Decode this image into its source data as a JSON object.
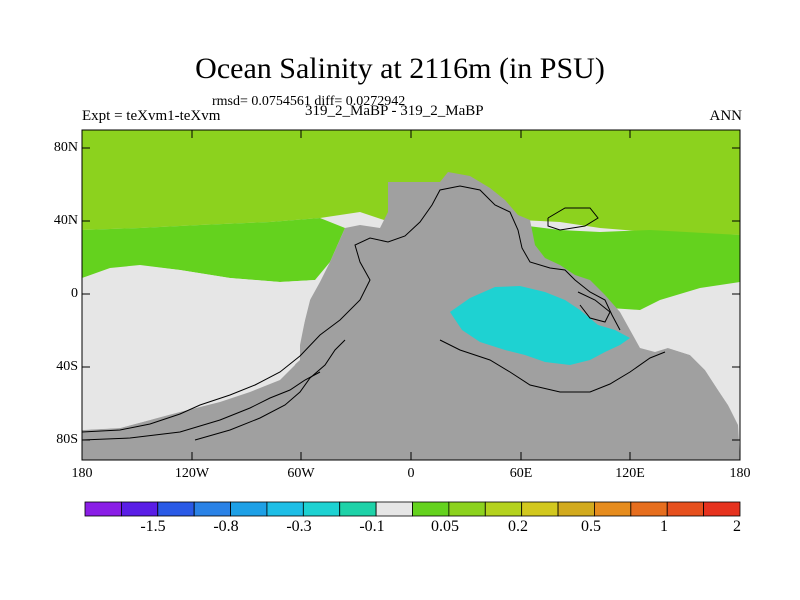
{
  "title": "Ocean Salinity at 2116m (in PSU)",
  "stats_line": "rmsd= 0.0754561 diff= 0.0272942",
  "experiment_label": "Expt = teXvm1-teXvm",
  "case_label": "319_2_MaBP - 319_2_MaBP",
  "season_label": "ANN",
  "y_ticks": [
    "80N",
    "40N",
    "0",
    "40S",
    "80S"
  ],
  "x_ticks": [
    "180",
    "120W",
    "60W",
    "0",
    "60E",
    "120E",
    "180"
  ],
  "colorbar": {
    "colors": [
      "#8a1ee6",
      "#5a1ee6",
      "#2a5ae6",
      "#2a82e6",
      "#1ea0e6",
      "#1ebee6",
      "#1ed2d2",
      "#1ed2a8",
      "#e6e6e6",
      "#64d21e",
      "#8cd21e",
      "#b4d21e",
      "#d2c81e",
      "#d2aa1e",
      "#e68c1e",
      "#e66e1e",
      "#e6501e",
      "#e6321e"
    ],
    "labels": [
      "-1.5",
      "-0.8",
      "-0.3",
      "-0.1",
      "0.05",
      "0.2",
      "0.5",
      "1",
      "2"
    ]
  },
  "colors": {
    "land": "#a0a0a0",
    "north_band": "#8cd21e",
    "mid_band": "#64d21e",
    "low_diff": "#e6e6e6",
    "negative_patch": "#1ed2d2"
  }
}
